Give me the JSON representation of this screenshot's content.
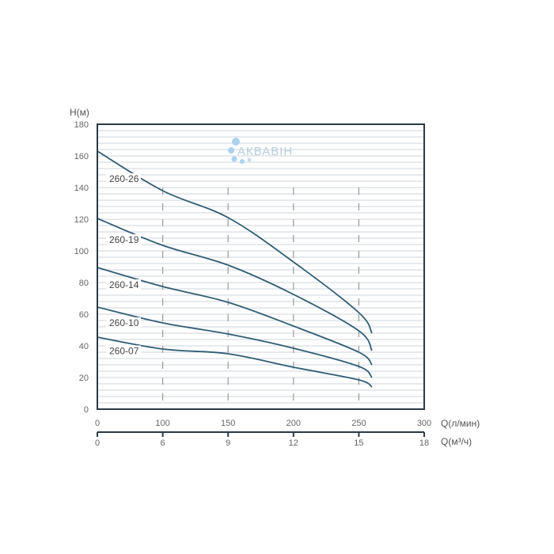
{
  "chart_data": {
    "type": "line",
    "title": "",
    "ylabel": "H(м)",
    "xlabel": "Q(л/мин)",
    "xlabel2": "Q(м³/ч)",
    "ylim": [
      0,
      180
    ],
    "yticks": [
      0,
      20,
      40,
      60,
      80,
      100,
      120,
      140,
      160,
      180
    ],
    "xticks": [
      0,
      100,
      150,
      200,
      250,
      300
    ],
    "xticks2": [
      "0",
      "6",
      "9",
      "12",
      "15",
      "18"
    ],
    "minor_grid_step": 4,
    "dashed_verticals": [
      100,
      150,
      200,
      250
    ],
    "grid": true,
    "x": [
      0,
      100,
      150,
      200,
      250,
      260
    ],
    "series": [
      {
        "name": "260-26",
        "values": [
          163,
          138,
          121,
          93,
          61,
          48
        ]
      },
      {
        "name": "260-19",
        "values": [
          120.5,
          103.5,
          91,
          72.5,
          49.5,
          37
        ]
      },
      {
        "name": "260-14",
        "values": [
          89.5,
          77.5,
          67.5,
          52.5,
          36,
          28
        ]
      },
      {
        "name": "260-10",
        "values": [
          64.5,
          54.5,
          47.5,
          38.5,
          27,
          20
        ]
      },
      {
        "name": "260-07",
        "values": [
          45.5,
          38,
          35,
          26.5,
          18.5,
          14
        ]
      }
    ],
    "colors": {
      "line": "#2f5d73",
      "frame": "#2a3a44",
      "grid": "#d6dde2",
      "dashed": "#999999",
      "logo": "#9fc9e6"
    }
  },
  "watermark": {
    "text": "АКВАВІН"
  }
}
